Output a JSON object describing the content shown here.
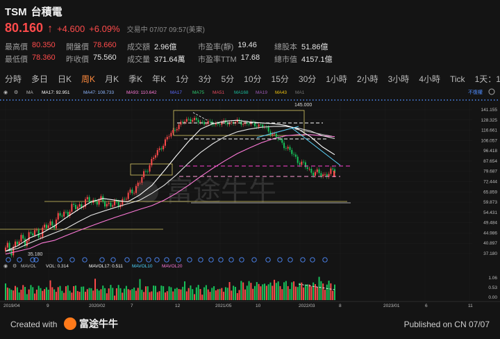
{
  "header": {
    "symbol": "TSM",
    "name": "台積電",
    "price": "80.160",
    "change": "+4.600",
    "change_pct": "+6.09%",
    "status": "交易中 07/07 09:57(美東)"
  },
  "stats": [
    [
      {
        "label": "最高價",
        "value": "80.350",
        "color": "red"
      },
      {
        "label": "開盤價",
        "value": "78.660",
        "color": "red"
      },
      {
        "label": "成交額",
        "value": "2.96億",
        "color": ""
      },
      {
        "label": "市盈率(靜)",
        "value": "19.46",
        "color": ""
      },
      {
        "label": "總股本",
        "value": "51.86億",
        "color": ""
      }
    ],
    [
      {
        "label": "最低價",
        "value": "78.360",
        "color": "red"
      },
      {
        "label": "昨收價",
        "value": "75.560",
        "color": ""
      },
      {
        "label": "成交量",
        "value": "371.64萬",
        "color": ""
      },
      {
        "label": "市盈率TTM",
        "value": "17.68",
        "color": ""
      },
      {
        "label": "總市值",
        "value": "4157.1億",
        "color": ""
      }
    ]
  ],
  "tabs": [
    "分時",
    "多日",
    "日K",
    "周K",
    "月K",
    "季K",
    "年K",
    "1分",
    "3分",
    "5分",
    "10分",
    "15分",
    "30分",
    "1小時",
    "2小時",
    "3小時",
    "4小時",
    "Tick",
    "1天：1分K"
  ],
  "active_tab": "周K",
  "indicators": {
    "ma": [
      "MA",
      "MA17: 92.951",
      "MA47: 108.733",
      "MA93: 110.642",
      "MA17",
      "MA75",
      "MA51",
      "MA168",
      "MA19",
      "MA43",
      "MA1"
    ],
    "no_adjust": "不復權",
    "vol": [
      "MAVOL",
      "VOL: 0.314",
      "MAVOL17: 0.511",
      "MAVOL10",
      "MAVOL20"
    ]
  },
  "chart_data": {
    "type": "candlestick",
    "title": "",
    "price_axis": [
      "141.155",
      "128.325",
      "116.661",
      "106.057",
      "96.418",
      "87.654",
      "79.687",
      "72.444",
      "65.859",
      "59.873",
      "54.431",
      "49.484",
      "44.986",
      "40.897",
      "37.180"
    ],
    "volume_axis": [
      "1.06",
      "0.53",
      "0.00"
    ],
    "x_ticks": [
      "2019/04",
      "9",
      "2020/02",
      "7",
      "12",
      "2021/05",
      "10",
      "2022/03",
      "8",
      "2023/01",
      "6",
      "11"
    ],
    "annotations": {
      "high": "145.000",
      "low": "35.180"
    },
    "series_ma17": [
      38,
      40,
      43,
      45,
      48,
      52,
      56,
      60,
      62,
      61,
      60,
      64,
      70,
      80,
      92,
      105,
      118,
      124,
      127,
      128,
      126,
      125,
      124,
      122,
      118,
      110,
      100,
      93
    ],
    "series_ma47": [
      38,
      39,
      41,
      43,
      45,
      47,
      50,
      53,
      55,
      57,
      59,
      61,
      65,
      70,
      77,
      86,
      95,
      103,
      110,
      115,
      118,
      120,
      121,
      121,
      119,
      116,
      111,
      108
    ],
    "series_ma93": [
      37,
      38,
      39,
      41,
      42,
      44,
      46,
      48,
      50,
      52,
      54,
      56,
      58,
      61,
      65,
      70,
      76,
      82,
      88,
      94,
      99,
      104,
      108,
      111,
      112,
      112,
      111,
      110
    ],
    "close": [
      38,
      41,
      44,
      46,
      50,
      55,
      58,
      61,
      60,
      58,
      63,
      72,
      88,
      104,
      120,
      130,
      126,
      124,
      125,
      126,
      124,
      122,
      112,
      100,
      88,
      80,
      77,
      80
    ]
  },
  "footer": {
    "created": "Created with",
    "brand": "富途牛牛",
    "published": "Published on CN 07/07"
  }
}
